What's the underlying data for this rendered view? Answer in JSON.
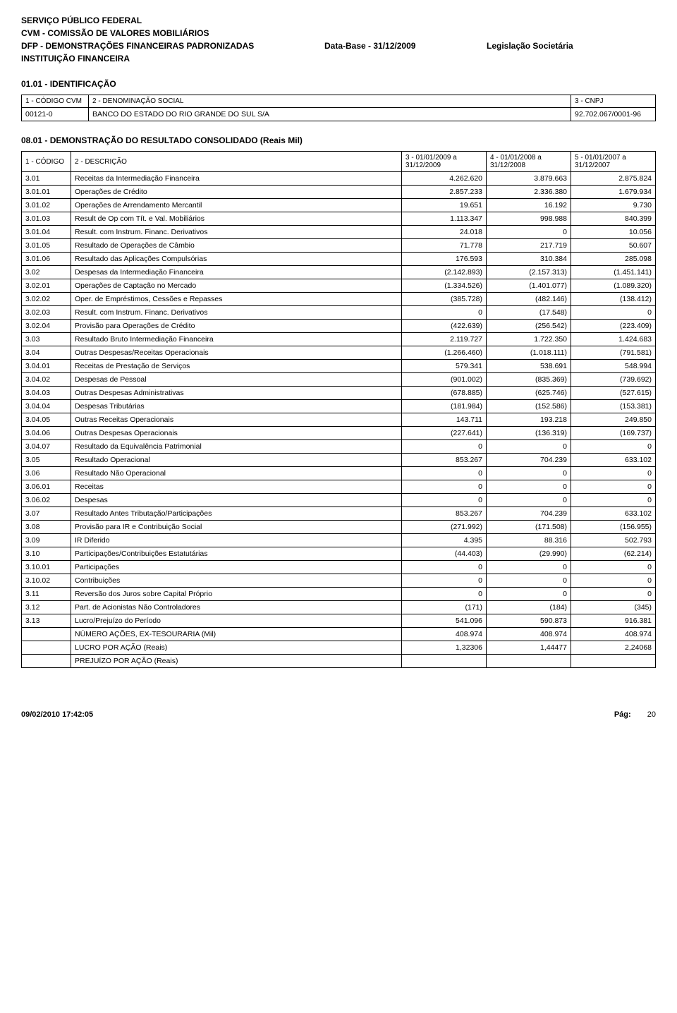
{
  "header": {
    "line1": "SERVIÇO PÚBLICO FEDERAL",
    "line2": "CVM - COMISSÃO DE VALORES MOBILIÁRIOS",
    "line3_left": "DFP - DEMONSTRAÇÕES FINANCEIRAS PADRONIZADAS",
    "line3_mid": "Data-Base - 31/12/2009",
    "line3_right": "Legislação Societária",
    "line4": "INSTITUIÇÃO FINANCEIRA"
  },
  "ident": {
    "section_title": "01.01 - IDENTIFICAÇÃO",
    "headers": [
      "1 - CÓDIGO CVM",
      "2 - DENOMINAÇÃO SOCIAL",
      "3 - CNPJ"
    ],
    "row": [
      "00121-0",
      "BANCO DO ESTADO DO RIO GRANDE DO SUL S/A",
      "92.702.067/0001-96"
    ]
  },
  "fin": {
    "section_title": "08.01 - DEMONSTRAÇÃO DO RESULTADO CONSOLIDADO (Reais Mil)",
    "headers": [
      "1 - CÓDIGO",
      "2 - DESCRIÇÃO",
      "3 - 01/01/2009 a 31/12/2009",
      "4 - 01/01/2008 a 31/12/2008",
      "5 - 01/01/2007 a 31/12/2007"
    ],
    "rows": [
      [
        "3.01",
        "Receitas da Intermediação Financeira",
        "4.262.620",
        "3.879.663",
        "2.875.824"
      ],
      [
        "3.01.01",
        "Operações de Crédito",
        "2.857.233",
        "2.336.380",
        "1.679.934"
      ],
      [
        "3.01.02",
        "Operações de Arrendamento Mercantil",
        "19.651",
        "16.192",
        "9.730"
      ],
      [
        "3.01.03",
        "Result de Op com Tít. e Val. Mobiliários",
        "1.113.347",
        "998.988",
        "840.399"
      ],
      [
        "3.01.04",
        "Result. com Instrum. Financ. Derivativos",
        "24.018",
        "0",
        "10.056"
      ],
      [
        "3.01.05",
        "Resultado de Operações de Câmbio",
        "71.778",
        "217.719",
        "50.607"
      ],
      [
        "3.01.06",
        "Resultado das Aplicações Compulsórias",
        "176.593",
        "310.384",
        "285.098"
      ],
      [
        "3.02",
        "Despesas da Intermediação Financeira",
        "(2.142.893)",
        "(2.157.313)",
        "(1.451.141)"
      ],
      [
        "3.02.01",
        "Operações de Captação no Mercado",
        "(1.334.526)",
        "(1.401.077)",
        "(1.089.320)"
      ],
      [
        "3.02.02",
        "Oper. de Empréstimos, Cessões e Repasses",
        "(385.728)",
        "(482.146)",
        "(138.412)"
      ],
      [
        "3.02.03",
        "Result. com Instrum. Financ. Derivativos",
        "0",
        "(17.548)",
        "0"
      ],
      [
        "3.02.04",
        "Provisão para Operações de Crédito",
        "(422.639)",
        "(256.542)",
        "(223.409)"
      ],
      [
        "3.03",
        "Resultado Bruto Intermediação Financeira",
        "2.119.727",
        "1.722.350",
        "1.424.683"
      ],
      [
        "3.04",
        "Outras Despesas/Receitas Operacionais",
        "(1.266.460)",
        "(1.018.111)",
        "(791.581)"
      ],
      [
        "3.04.01",
        "Receitas de Prestação de Serviços",
        "579.341",
        "538.691",
        "548.994"
      ],
      [
        "3.04.02",
        "Despesas de Pessoal",
        "(901.002)",
        "(835.369)",
        "(739.692)"
      ],
      [
        "3.04.03",
        "Outras Despesas Administrativas",
        "(678.885)",
        "(625.746)",
        "(527.615)"
      ],
      [
        "3.04.04",
        "Despesas Tributárias",
        "(181.984)",
        "(152.586)",
        "(153.381)"
      ],
      [
        "3.04.05",
        "Outras Receitas Operacionais",
        "143.711",
        "193.218",
        "249.850"
      ],
      [
        "3.04.06",
        "Outras Despesas Operacionais",
        "(227.641)",
        "(136.319)",
        "(169.737)"
      ],
      [
        "3.04.07",
        "Resultado da Equivalência Patrimonial",
        "0",
        "0",
        "0"
      ],
      [
        "3.05",
        "Resultado Operacional",
        "853.267",
        "704.239",
        "633.102"
      ],
      [
        "3.06",
        "Resultado Não Operacional",
        "0",
        "0",
        "0"
      ],
      [
        "3.06.01",
        "Receitas",
        "0",
        "0",
        "0"
      ],
      [
        "3.06.02",
        "Despesas",
        "0",
        "0",
        "0"
      ],
      [
        "3.07",
        "Resultado Antes Tributação/Participações",
        "853.267",
        "704.239",
        "633.102"
      ],
      [
        "3.08",
        "Provisão para IR e Contribuição Social",
        "(271.992)",
        "(171.508)",
        "(156.955)"
      ],
      [
        "3.09",
        "IR Diferido",
        "4.395",
        "88.316",
        "502.793"
      ],
      [
        "3.10",
        "Participações/Contribuições Estatutárias",
        "(44.403)",
        "(29.990)",
        "(62.214)"
      ],
      [
        "3.10.01",
        "Participações",
        "0",
        "0",
        "0"
      ],
      [
        "3.10.02",
        "Contribuições",
        "0",
        "0",
        "0"
      ],
      [
        "3.11",
        "Reversão dos Juros sobre Capital Próprio",
        "0",
        "0",
        "0"
      ],
      [
        "3.12",
        "Part. de Acionistas Não Controladores",
        "(171)",
        "(184)",
        "(345)"
      ],
      [
        "3.13",
        "Lucro/Prejuízo do Período",
        "541.096",
        "590.873",
        "916.381"
      ],
      [
        "",
        "NÚMERO AÇÕES, EX-TESOURARIA (Mil)",
        "408.974",
        "408.974",
        "408.974"
      ],
      [
        "",
        "LUCRO POR AÇÃO  (Reais)",
        "1,32306",
        "1,44477",
        "2,24068"
      ],
      [
        "",
        "PREJUÍZO POR AÇÃO  (Reais)",
        "",
        "",
        ""
      ]
    ]
  },
  "footer": {
    "timestamp": "09/02/2010 17:42:05",
    "pg_label": "Pág:",
    "pg_num": "20"
  }
}
